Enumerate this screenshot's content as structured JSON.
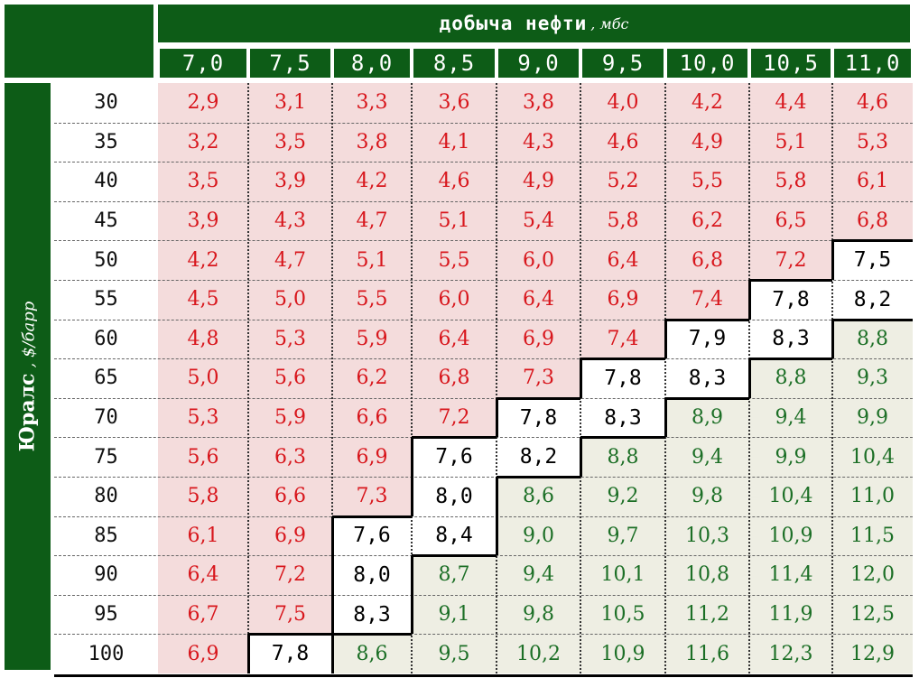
{
  "table": {
    "col_title": "добыча нефти",
    "col_unit": ", мбс",
    "row_title": "Юралс",
    "row_unit": ", $/барр"
  },
  "colors": {
    "header_green": "#0d5c17",
    "red_zone_fill": "#f4dcdc",
    "red_zone_text": "#d8161c",
    "green_zone_fill": "#eeeee3",
    "green_zone_text": "#1c6f26",
    "break_even_fill": "#ffffff",
    "break_even_text": "#000000"
  },
  "chart_data": {
    "type": "table",
    "columns": [
      "7,0",
      "7,5",
      "8,0",
      "8,5",
      "9,0",
      "9,5",
      "10,0",
      "10,5",
      "11,0"
    ],
    "rows": [
      "30",
      "35",
      "40",
      "45",
      "50",
      "55",
      "60",
      "65",
      "70",
      "75",
      "80",
      "85",
      "90",
      "95",
      "100"
    ],
    "values": [
      [
        "2,9",
        "3,1",
        "3,3",
        "3,6",
        "3,8",
        "4,0",
        "4,2",
        "4,4",
        "4,6"
      ],
      [
        "3,2",
        "3,5",
        "3,8",
        "4,1",
        "4,3",
        "4,6",
        "4,9",
        "5,1",
        "5,3"
      ],
      [
        "3,5",
        "3,9",
        "4,2",
        "4,6",
        "4,9",
        "5,2",
        "5,5",
        "5,8",
        "6,1"
      ],
      [
        "3,9",
        "4,3",
        "4,7",
        "5,1",
        "5,4",
        "5,8",
        "6,2",
        "6,5",
        "6,8"
      ],
      [
        "4,2",
        "4,7",
        "5,1",
        "5,5",
        "6,0",
        "6,4",
        "6,8",
        "7,2",
        "7,5"
      ],
      [
        "4,5",
        "5,0",
        "5,5",
        "6,0",
        "6,4",
        "6,9",
        "7,4",
        "7,8",
        "8,2"
      ],
      [
        "4,8",
        "5,3",
        "5,9",
        "6,4",
        "6,9",
        "7,4",
        "7,9",
        "8,3",
        "8,8"
      ],
      [
        "5,0",
        "5,6",
        "6,2",
        "6,8",
        "7,3",
        "7,8",
        "8,3",
        "8,8",
        "9,3"
      ],
      [
        "5,3",
        "5,9",
        "6,6",
        "7,2",
        "7,8",
        "8,3",
        "8,9",
        "9,4",
        "9,9"
      ],
      [
        "5,6",
        "6,3",
        "6,9",
        "7,6",
        "8,2",
        "8,8",
        "9,4",
        "9,9",
        "10,4"
      ],
      [
        "5,8",
        "6,6",
        "7,3",
        "8,0",
        "8,6",
        "9,2",
        "9,8",
        "10,4",
        "11,0"
      ],
      [
        "6,1",
        "6,9",
        "7,6",
        "8,4",
        "9,0",
        "9,7",
        "10,3",
        "10,9",
        "11,5"
      ],
      [
        "6,4",
        "7,2",
        "8,0",
        "8,7",
        "9,4",
        "10,1",
        "10,8",
        "11,4",
        "12,0"
      ],
      [
        "6,7",
        "7,5",
        "8,3",
        "9,1",
        "9,8",
        "10,5",
        "11,2",
        "11,9",
        "12,5"
      ],
      [
        "6,9",
        "7,8",
        "8,6",
        "9,5",
        "10,2",
        "10,9",
        "11,6",
        "12,3",
        "12,9"
      ]
    ],
    "zones": [
      [
        "r",
        "r",
        "r",
        "r",
        "r",
        "r",
        "r",
        "r",
        "r"
      ],
      [
        "r",
        "r",
        "r",
        "r",
        "r",
        "r",
        "r",
        "r",
        "r"
      ],
      [
        "r",
        "r",
        "r",
        "r",
        "r",
        "r",
        "r",
        "r",
        "r"
      ],
      [
        "r",
        "r",
        "r",
        "r",
        "r",
        "r",
        "r",
        "r",
        "r"
      ],
      [
        "r",
        "r",
        "r",
        "r",
        "r",
        "r",
        "r",
        "r",
        "w"
      ],
      [
        "r",
        "r",
        "r",
        "r",
        "r",
        "r",
        "r",
        "w",
        "w"
      ],
      [
        "r",
        "r",
        "r",
        "r",
        "r",
        "r",
        "w",
        "w",
        "g"
      ],
      [
        "r",
        "r",
        "r",
        "r",
        "r",
        "w",
        "w",
        "g",
        "g"
      ],
      [
        "r",
        "r",
        "r",
        "r",
        "w",
        "w",
        "g",
        "g",
        "g"
      ],
      [
        "r",
        "r",
        "r",
        "w",
        "w",
        "g",
        "g",
        "g",
        "g"
      ],
      [
        "r",
        "r",
        "r",
        "w",
        "g",
        "g",
        "g",
        "g",
        "g"
      ],
      [
        "r",
        "r",
        "w",
        "w",
        "g",
        "g",
        "g",
        "g",
        "g"
      ],
      [
        "r",
        "r",
        "w",
        "g",
        "g",
        "g",
        "g",
        "g",
        "g"
      ],
      [
        "r",
        "r",
        "w",
        "g",
        "g",
        "g",
        "g",
        "g",
        "g"
      ],
      [
        "r",
        "w",
        "g",
        "g",
        "g",
        "g",
        "g",
        "g",
        "g"
      ]
    ]
  }
}
